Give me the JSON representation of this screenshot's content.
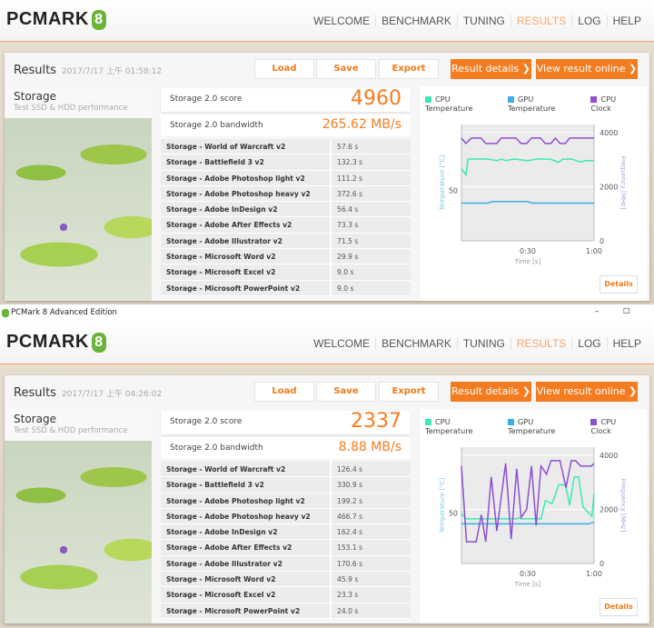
{
  "app": {
    "logo": "PCMARK",
    "logo_num": "8",
    "nav": [
      "WELCOME",
      "BENCHMARK",
      "TUNING",
      "RESULTS",
      "LOG",
      "HELP"
    ],
    "active_nav": "RESULTS"
  },
  "window": {
    "title": "PCMark 8 Advanced Edition",
    "minimize": "–",
    "maximize": "☐"
  },
  "labels": {
    "results": "Results",
    "load": "Load",
    "save": "Save",
    "export": "Export",
    "result_details": "Result details ❯",
    "view_online": "View result online ❯",
    "storage": "Storage",
    "storage_sub": "Test SSD & HDD performance",
    "score_label": "Storage 2.0 score",
    "bw_label": "Storage 2.0 bandwidth",
    "details": "Details",
    "legend": [
      "CPU Temperature",
      "GPU Temperature",
      "CPU Clock"
    ],
    "temp_axis": "Temperature [°C]",
    "freq_axis": "Frequency [MHz]",
    "time_axis": "Time [s]",
    "x_ticks": [
      "0:30",
      "1:00"
    ],
    "temp_ticks": [
      "50"
    ],
    "freq_ticks": [
      "4000",
      "2000",
      "0"
    ]
  },
  "colors": {
    "accent": "#f47c20",
    "cpu_temp": "#3de8b8",
    "gpu_temp": "#3aaee8",
    "cpu_clock": "#8e4fd0",
    "temp_axis": "#7cc6ee",
    "freq_axis": "#b89ae0"
  },
  "tests": [
    "Storage - World of Warcraft v2",
    "Storage - Battlefield 3 v2",
    "Storage - Adobe Photoshop light v2",
    "Storage - Adobe Photoshop heavy v2",
    "Storage - Adobe InDesign v2",
    "Storage - Adobe After Effects v2",
    "Storage - Adobe Illustrator v2",
    "Storage - Microsoft Word v2",
    "Storage - Microsoft Excel v2",
    "Storage - Microsoft PowerPoint v2"
  ],
  "results": [
    {
      "date": "2017/7/17 上午 01:58:12",
      "score": "4960",
      "bandwidth": "265.62 MB/s",
      "times": [
        "57.6 s",
        "132.3 s",
        "111.2 s",
        "372.6 s",
        "56.4 s",
        "73.3 s",
        "71.5 s",
        "29.9 s",
        "9.0 s",
        "9.0 s"
      ]
    },
    {
      "date": "2017/7/17 上午 04:26:02",
      "score": "2337",
      "bandwidth": "8.88 MB/s",
      "times": [
        "126.4 s",
        "330.9 s",
        "199.2 s",
        "466.7 s",
        "162.4 s",
        "153.1 s",
        "170.6 s",
        "45.9 s",
        "23.3 s",
        "24.0 s"
      ]
    }
  ],
  "chart_data": [
    {
      "type": "line",
      "xlabel": "Time [s]",
      "ylabel": "Temperature [°C]",
      "y2label": "Frequency [MHz]",
      "xlim": [
        0,
        60
      ],
      "ylim": [
        34,
        71
      ],
      "y2lim": [
        0,
        4300
      ],
      "series": [
        {
          "name": "CPU Temperature",
          "axis": "left",
          "x": [
            0,
            2,
            3,
            6,
            12,
            16,
            18,
            20,
            24,
            30,
            34,
            40,
            44,
            46,
            50,
            54,
            56,
            60
          ],
          "y": [
            57,
            55,
            60,
            60,
            60,
            59.5,
            60,
            59.5,
            60,
            59.5,
            60,
            60,
            59,
            60,
            60,
            59,
            59.5,
            59.5
          ]
        },
        {
          "name": "GPU Temperature",
          "axis": "left",
          "x": [
            0,
            12,
            14,
            30,
            32,
            60
          ],
          "y": [
            46,
            46,
            46.5,
            46.5,
            46,
            46
          ]
        },
        {
          "name": "CPU Clock",
          "axis": "right",
          "x": [
            0,
            2,
            4.6,
            8.8,
            11,
            16,
            18,
            24.6,
            27,
            29.5,
            31.7,
            35.7,
            38,
            40.5,
            42.5,
            44.6,
            47,
            49,
            60
          ],
          "y": [
            3800,
            3600,
            3800,
            3800,
            3600,
            3600,
            3800,
            3800,
            3600,
            3600,
            3800,
            3800,
            3600,
            3600,
            3800,
            3600,
            3600,
            3800,
            3800
          ]
        }
      ]
    },
    {
      "type": "line",
      "xlabel": "Time [s]",
      "ylabel": "Temperature [°C]",
      "y2label": "Frequency [MHz]",
      "xlim": [
        0,
        60
      ],
      "ylim": [
        34,
        71
      ],
      "y2lim": [
        0,
        4300
      ],
      "series": [
        {
          "name": "CPU Temperature",
          "axis": "left",
          "x": [
            0,
            2,
            25,
            26,
            27,
            36,
            38,
            41,
            44,
            47,
            49,
            51,
            53,
            55,
            59,
            60
          ],
          "y": [
            50,
            48.2,
            48.2,
            48.6,
            48.2,
            48.2,
            54,
            53,
            59,
            59,
            52.5,
            61.5,
            61.5,
            52,
            49,
            56
          ]
        },
        {
          "name": "GPU Temperature",
          "axis": "left",
          "x": [
            0,
            58,
            59,
            60
          ],
          "y": [
            46.6,
            46.6,
            47,
            47
          ]
        },
        {
          "name": "CPU Clock",
          "axis": "right",
          "x": [
            0,
            2.3,
            6.7,
            9,
            11,
            13.5,
            16,
            20,
            22.5,
            25,
            27,
            29.5,
            31.7,
            33.8,
            36,
            38.5,
            40.5,
            44.6,
            47.3,
            49.7,
            51.6,
            54,
            58.8,
            60
          ],
          "y": [
            3600,
            800,
            800,
            1800,
            800,
            3200,
            1200,
            3700,
            900,
            3500,
            1700,
            2000,
            3600,
            1400,
            3600,
            3300,
            3800,
            3800,
            2800,
            3800,
            3800,
            3600,
            3600,
            3700
          ]
        }
      ]
    }
  ]
}
